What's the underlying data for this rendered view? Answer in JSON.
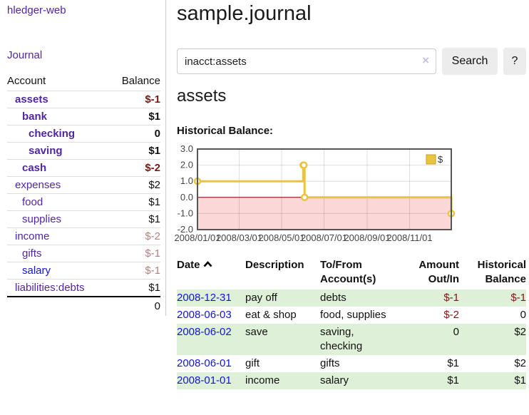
{
  "palette": {
    "purple": "#5226a3",
    "blue": "#1414d6",
    "dark_red": "#7d1616",
    "pale_red": "#b97d7d",
    "black": "#111111",
    "row_green": "#dff0d8",
    "border_light": "#dddddd",
    "button_bg": "#ececec"
  },
  "sidebar": {
    "brand": "hledger-web",
    "journal_link": "Journal",
    "header": {
      "account": "Account",
      "balance": "Balance"
    },
    "rows": [
      {
        "name": "assets",
        "level": 1,
        "bold": true,
        "name_color": "purple",
        "amount": "$-1",
        "amount_color": "dark_red"
      },
      {
        "name": "bank",
        "level": 2,
        "bold": true,
        "name_color": "purple",
        "amount": "$1",
        "amount_color": "black"
      },
      {
        "name": "checking",
        "level": 3,
        "bold": true,
        "name_color": "purple",
        "amount": "0",
        "amount_color": "black"
      },
      {
        "name": "saving",
        "level": 3,
        "bold": true,
        "name_color": "purple",
        "amount": "$1",
        "amount_color": "black"
      },
      {
        "name": "cash",
        "level": 2,
        "bold": true,
        "name_color": "purple",
        "amount": "$-2",
        "amount_color": "dark_red"
      },
      {
        "name": "expenses",
        "level": 1,
        "bold": false,
        "name_color": "purple",
        "amount": "$2",
        "amount_color": "black"
      },
      {
        "name": "food",
        "level": 2,
        "bold": false,
        "name_color": "purple",
        "amount": "$1",
        "amount_color": "black"
      },
      {
        "name": "supplies",
        "level": 2,
        "bold": false,
        "name_color": "purple",
        "amount": "$1",
        "amount_color": "black"
      },
      {
        "name": "income",
        "level": 1,
        "bold": false,
        "name_color": "purple",
        "amount": "$-2",
        "amount_color": "pale_red"
      },
      {
        "name": "gifts",
        "level": 2,
        "bold": false,
        "name_color": "purple",
        "amount": "$-1",
        "amount_color": "pale_red"
      },
      {
        "name": "salary",
        "level": 2,
        "bold": false,
        "name_color": "blue",
        "amount": "$-1",
        "amount_color": "pale_red"
      },
      {
        "name": "liabilities:debts",
        "level": 1,
        "bold": false,
        "name_color": "purple",
        "amount": "$1",
        "amount_color": "black",
        "last": true
      }
    ],
    "total": "0"
  },
  "main": {
    "title": "sample.journal",
    "search": {
      "value": "inacct:assets",
      "clear_icon": "×",
      "button_label": "Search",
      "help_label": "?"
    },
    "account_heading": "assets",
    "section_label": "Historical Balance:"
  },
  "chart_data": {
    "type": "line",
    "step": true,
    "title": "Historical Balance",
    "xlabel": "",
    "ylabel": "",
    "xlim_days": [
      0,
      365
    ],
    "ylim": [
      -2,
      3
    ],
    "grid": true,
    "series": [
      {
        "name": "$",
        "color": "#e9c440",
        "points": [
          {
            "date": "2008-01-01",
            "day": 0,
            "value": 1
          },
          {
            "date": "2008-06-01",
            "day": 152,
            "value": 2
          },
          {
            "date": "2008-06-02",
            "day": 153,
            "value": 2
          },
          {
            "date": "2008-06-03",
            "day": 154,
            "value": 0
          },
          {
            "date": "2008-12-31",
            "day": 365,
            "value": -1
          }
        ]
      }
    ],
    "x_ticks": [
      {
        "day": 0,
        "label": "2008/01/01"
      },
      {
        "day": 60,
        "label": "2008/03/01"
      },
      {
        "day": 121,
        "label": "2008/05/01"
      },
      {
        "day": 182,
        "label": "2008/07/01"
      },
      {
        "day": 244,
        "label": "2008/09/01"
      },
      {
        "day": 305,
        "label": "2008/11/01"
      }
    ],
    "y_ticks": [
      {
        "value": 3,
        "label": "3.0"
      },
      {
        "value": 2,
        "label": "2.0"
      },
      {
        "value": 1,
        "label": "1.0"
      },
      {
        "value": 0,
        "label": "0.0"
      },
      {
        "value": -1,
        "label": "-1.0"
      },
      {
        "value": -2,
        "label": "-2.0"
      }
    ],
    "negative_region_fill": "#fbd7d7",
    "zero_line_color": "#8b0000",
    "legend": {
      "label": "$",
      "position": "top-right"
    }
  },
  "register": {
    "headers": [
      {
        "label": "Date",
        "sortable": true,
        "align": "left"
      },
      {
        "label": "Description",
        "align": "left"
      },
      {
        "label": "To/From Account(s)",
        "align": "left"
      },
      {
        "label": "Amount Out/In",
        "align": "right"
      },
      {
        "label": "Historical Balance",
        "align": "right"
      }
    ],
    "rows": [
      {
        "date": "2008-12-31",
        "description": "pay off",
        "accounts": "debts",
        "amount": "$-1",
        "amount_negative": true,
        "balance": "$-1",
        "balance_negative": true,
        "highlight": true
      },
      {
        "date": "2008-06-03",
        "description": "eat & shop",
        "accounts": "food, supplies",
        "amount": "$-2",
        "amount_negative": true,
        "balance": "0",
        "balance_negative": false,
        "highlight": false
      },
      {
        "date": "2008-06-02",
        "description": "save",
        "accounts": "saving, checking",
        "amount": "0",
        "amount_negative": false,
        "balance": "$2",
        "balance_negative": false,
        "highlight": true
      },
      {
        "date": "2008-06-01",
        "description": "gift",
        "accounts": "gifts",
        "amount": "$1",
        "amount_negative": false,
        "balance": "$2",
        "balance_negative": false,
        "highlight": false
      },
      {
        "date": "2008-01-01",
        "description": "income",
        "accounts": "salary",
        "amount": "$1",
        "amount_negative": false,
        "balance": "$1",
        "balance_negative": false,
        "highlight": true
      }
    ]
  }
}
